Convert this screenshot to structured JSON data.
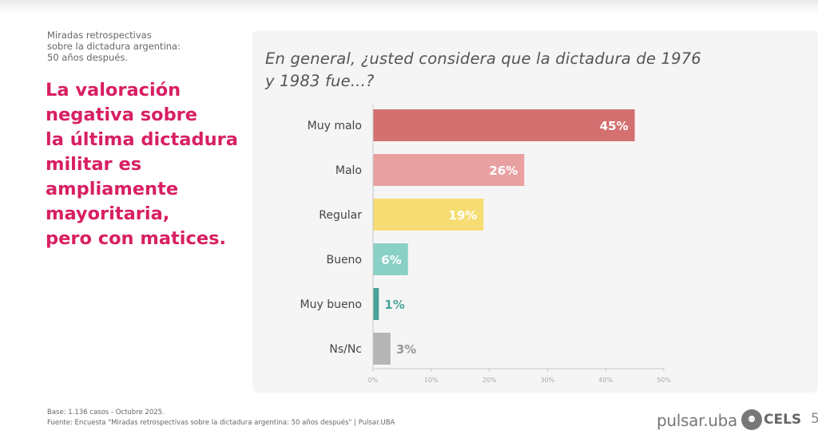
{
  "slide": {
    "subtitle": "Miradas retrospectivas\nsobre la dictadura argentina:\n50 años después.",
    "headline": "La valoración\nnegativa sobre\nla última dictadura\nmilitar es\nampliamente\nmayoritaria,\npero con matices.",
    "question": "En general, ¿usted considera que la dictadura de 1976 y 1983 fue...?",
    "base": "Base: 1.136 casos - Octubre 2025.",
    "source": "Fuente: Encuesta \"Miradas retrospectivas sobre la dictadura argentina: 50 años después\" | Pulsar.UBA",
    "logo_pulsar": "pulsar.uba",
    "logo_cels": "CELS",
    "page_number": "5"
  },
  "chart_data": {
    "type": "bar",
    "orientation": "horizontal",
    "categories": [
      "Muy malo",
      "Malo",
      "Regular",
      "Bueno",
      "Muy bueno",
      "Ns/Nc"
    ],
    "values": [
      45,
      26,
      19,
      6,
      1,
      3
    ],
    "value_labels": [
      "45%",
      "26%",
      "19%",
      "6%",
      "1%",
      "3%"
    ],
    "colors": [
      "#d47070",
      "#e8a0a0",
      "#f6dd73",
      "#89d0c6",
      "#4aa397",
      "#b5b5b5"
    ],
    "xlim": [
      0,
      50
    ],
    "xticks": [
      "0%",
      "10%",
      "20%",
      "30%",
      "40%",
      "50%"
    ],
    "title": "",
    "xlabel": "",
    "ylabel": "",
    "grid": false
  }
}
